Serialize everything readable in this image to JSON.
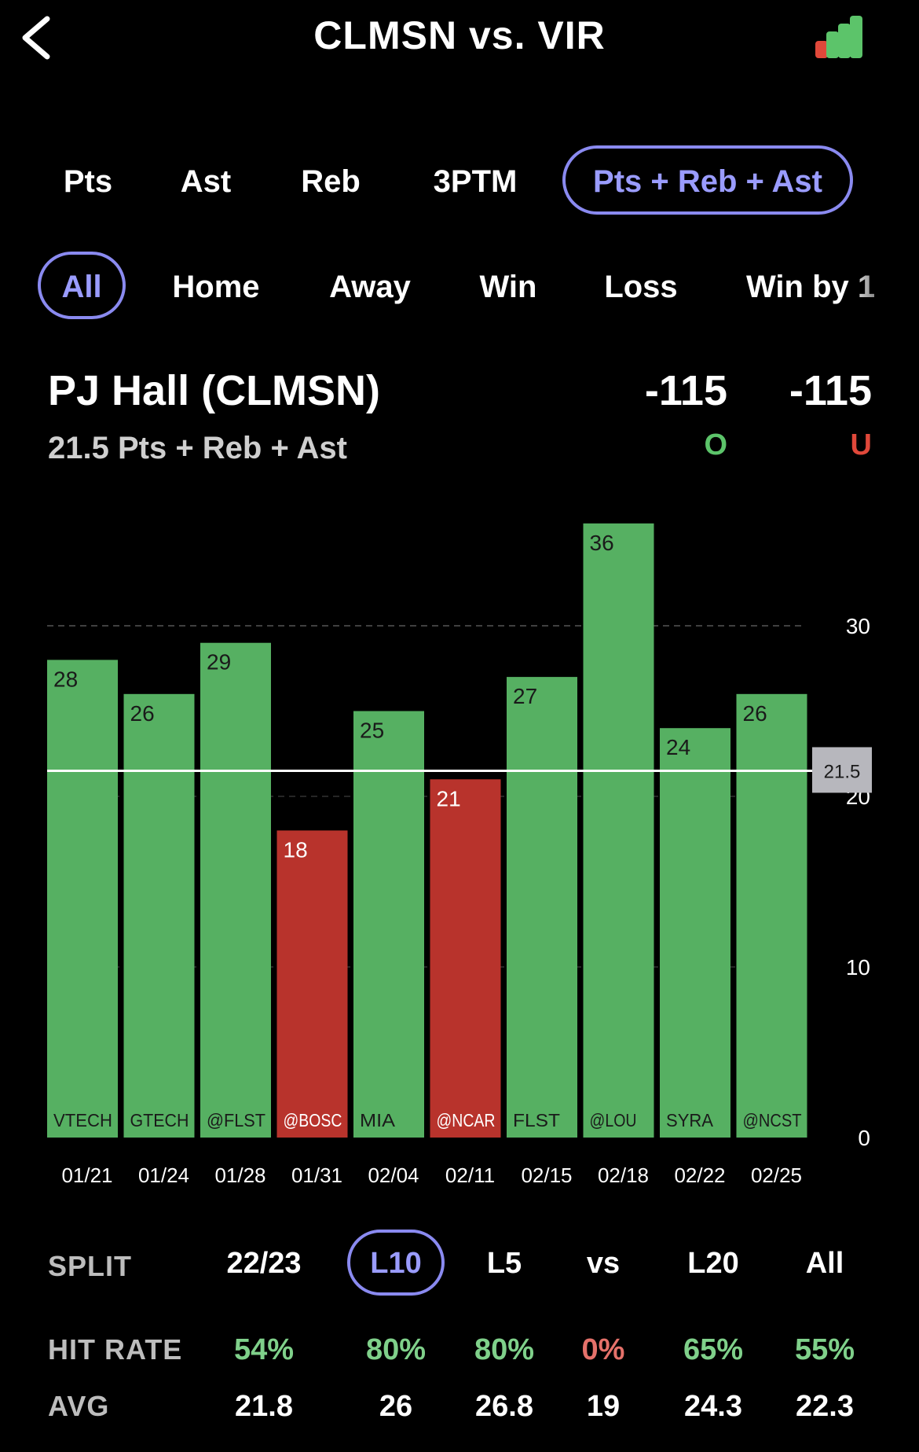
{
  "header": {
    "title": "CLMSN vs. VIR",
    "back_icon": "chevron-left-icon",
    "chart_icon": "bar-chart-icon"
  },
  "stat_tabs": [
    {
      "label": "Pts",
      "active": false
    },
    {
      "label": "Ast",
      "active": false
    },
    {
      "label": "Reb",
      "active": false
    },
    {
      "label": "3PTM",
      "active": false
    },
    {
      "label": "Pts + Reb + Ast",
      "active": true
    }
  ],
  "filter_tabs": [
    {
      "label": "All",
      "active": true
    },
    {
      "label": "Home",
      "active": false
    },
    {
      "label": "Away",
      "active": false
    },
    {
      "label": "Win",
      "active": false
    },
    {
      "label": "Loss",
      "active": false
    },
    {
      "label": "Win by 1",
      "active": false
    }
  ],
  "player": {
    "name": "PJ Hall (CLMSN)",
    "line": "21.5 Pts + Reb + Ast"
  },
  "odds": {
    "over_price": "-115",
    "over_label": "O",
    "under_price": "-115",
    "under_label": "U",
    "over_color": "#5cc46a",
    "under_color": "#e0483a"
  },
  "chart_data": {
    "type": "bar",
    "categories": [
      "01/21",
      "01/24",
      "01/28",
      "01/31",
      "02/04",
      "02/11",
      "02/15",
      "02/18",
      "02/22",
      "02/25"
    ],
    "opponents": [
      "VTECH",
      "GTECH",
      "@FLST",
      "@BOSC",
      "MIA",
      "@NCAR",
      "FLST",
      "@LOU",
      "SYRA",
      "@NCST"
    ],
    "values": [
      28,
      26,
      29,
      18,
      25,
      21,
      27,
      36,
      24,
      26
    ],
    "line": 21.5,
    "line_label": "21.5",
    "yticks": [
      0,
      10,
      20,
      30
    ],
    "ylim": [
      0,
      36
    ],
    "colors": {
      "over": "#56b062",
      "under": "#b8332c"
    }
  },
  "splits": {
    "header_label": "SPLIT",
    "hit_label": "HIT RATE",
    "avg_label": "AVG",
    "columns": [
      {
        "label": "22/23",
        "hit": "54%",
        "avg": "21.8",
        "active": false,
        "good": true
      },
      {
        "label": "L10",
        "hit": "80%",
        "avg": "26",
        "active": true,
        "good": true
      },
      {
        "label": "L5",
        "hit": "80%",
        "avg": "26.8",
        "active": false,
        "good": true
      },
      {
        "label": "vs",
        "hit": "0%",
        "avg": "19",
        "active": false,
        "good": false
      },
      {
        "label": "L20",
        "hit": "65%",
        "avg": "24.3",
        "active": false,
        "good": true
      },
      {
        "label": "All",
        "hit": "55%",
        "avg": "22.3",
        "active": false,
        "good": true
      }
    ],
    "good_color": "#7fd08a",
    "bad_color": "#e5716a"
  }
}
